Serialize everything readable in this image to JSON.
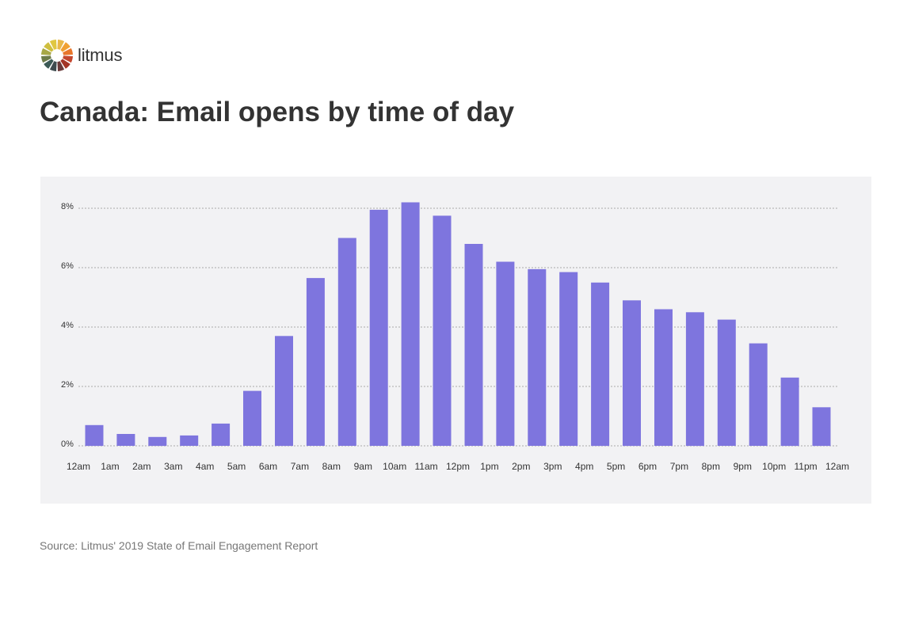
{
  "brand": {
    "name": "litmus"
  },
  "title": "Canada: Email opens by time of day",
  "source": "Source: Litmus' 2019 State of Email Engagement Report",
  "colors": {
    "bar": "#7e75de",
    "panel_background": "#f2f2f4",
    "gridline": "#aaaaaa",
    "text": "#333333",
    "muted_text": "#777777",
    "logo_segments": [
      "#e8b84a",
      "#f0a033",
      "#e8762b",
      "#c4472e",
      "#a33527",
      "#6a3b3b",
      "#3f4c50",
      "#3c5a56",
      "#6e7c49",
      "#a8a847",
      "#cfbf3f",
      "#e0c742"
    ]
  },
  "icons": {
    "logo": "litmus-color-wheel-icon"
  },
  "chart_data": {
    "type": "bar",
    "title": "Canada: Email opens by time of day",
    "xlabel": "",
    "ylabel": "",
    "categories": [
      "12am",
      "1am",
      "2am",
      "3am",
      "4am",
      "5am",
      "6am",
      "7am",
      "8am",
      "9am",
      "10am",
      "11am",
      "12pm",
      "1pm",
      "2pm",
      "3pm",
      "4pm",
      "5pm",
      "6pm",
      "7pm",
      "8pm",
      "9pm",
      "10pm",
      "11pm"
    ],
    "x_tick_labels": [
      "12am",
      "1am",
      "2am",
      "3am",
      "4am",
      "5am",
      "6am",
      "7am",
      "8am",
      "9am",
      "10am",
      "11am",
      "12pm",
      "1pm",
      "2pm",
      "3pm",
      "4pm",
      "5pm",
      "6pm",
      "7pm",
      "8pm",
      "9pm",
      "10pm",
      "11pm",
      "12am"
    ],
    "values": [
      0.7,
      0.4,
      0.3,
      0.35,
      0.75,
      1.85,
      3.7,
      5.65,
      7.0,
      7.95,
      8.2,
      7.75,
      6.8,
      6.2,
      5.95,
      5.85,
      5.5,
      4.9,
      4.6,
      4.5,
      4.25,
      3.45,
      2.3,
      1.3
    ],
    "y_ticks": [
      0,
      2,
      4,
      6,
      8
    ],
    "y_tick_labels": [
      "0%",
      "2%",
      "4%",
      "6%",
      "8%"
    ],
    "ylim": [
      0,
      8.3
    ],
    "grid": true,
    "legend": "none"
  }
}
